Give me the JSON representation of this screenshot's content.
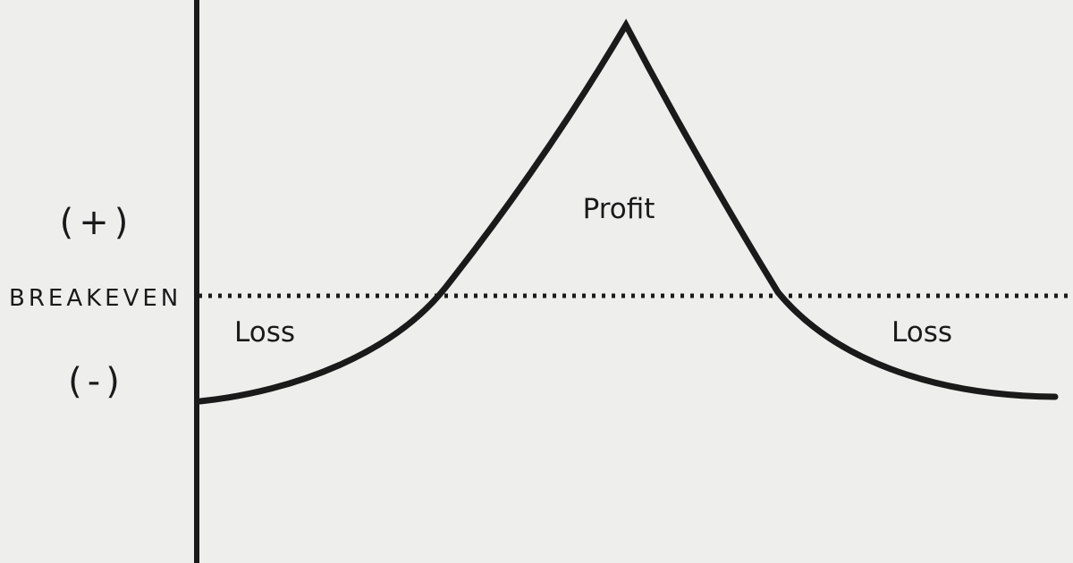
{
  "labels": {
    "positive": "(+)",
    "negative": "(-)",
    "breakeven": "BREAKEVEN",
    "profit": "Profit",
    "loss_left": "Loss",
    "loss_right": "Loss"
  },
  "colors": {
    "background": "#eeeeec",
    "ink": "#1a1a1a"
  }
}
